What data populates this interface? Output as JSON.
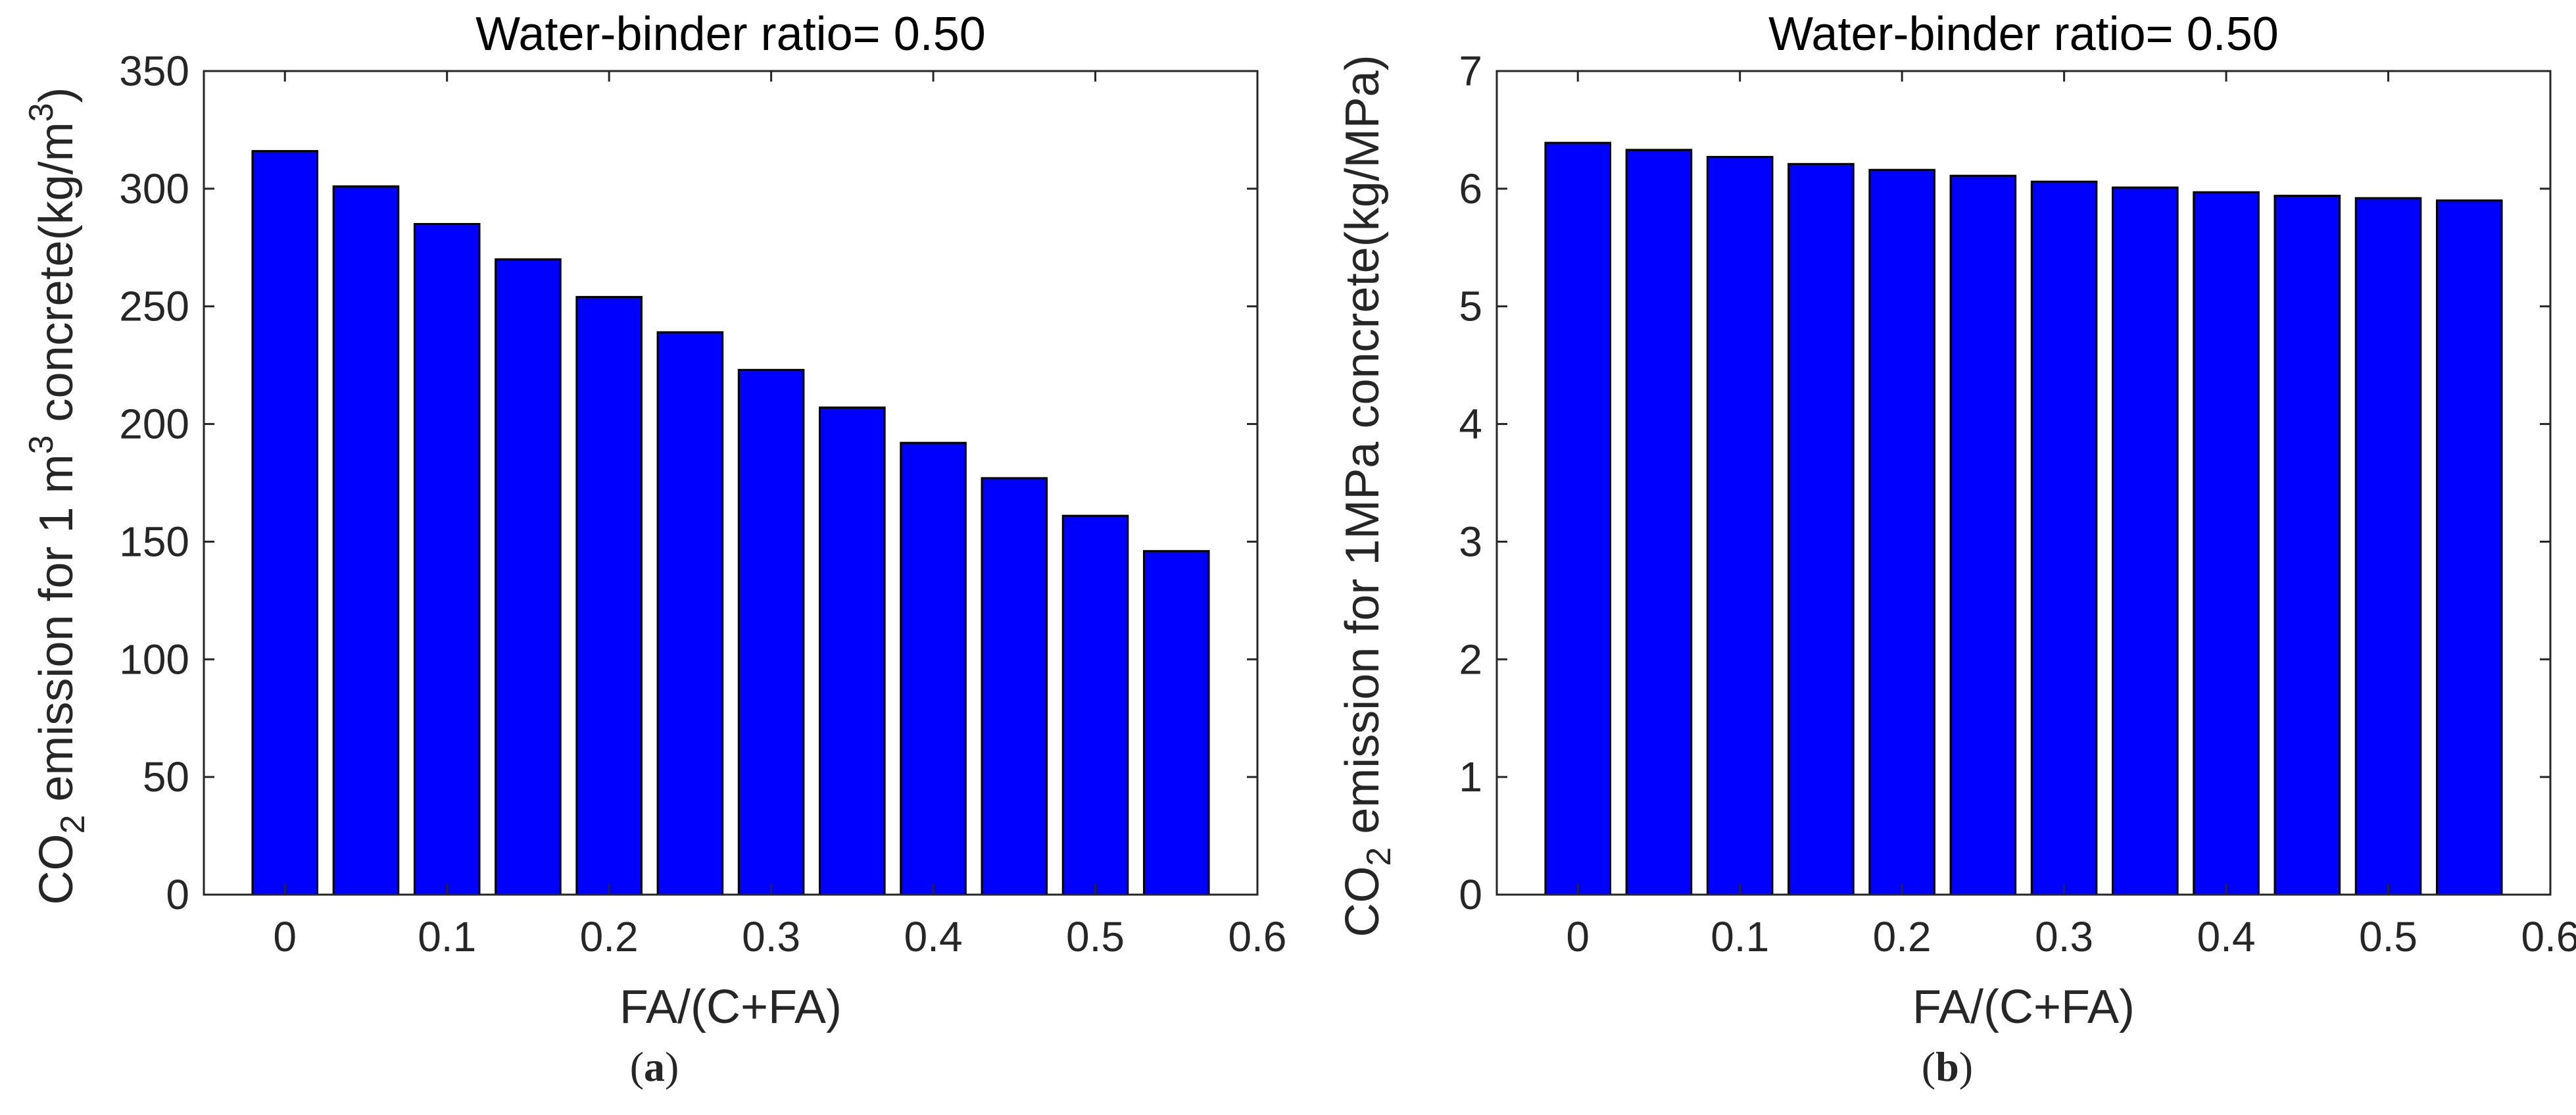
{
  "colors": {
    "bar": "#0000ff",
    "axis": "#262626",
    "text": "#262626"
  },
  "chart_data": [
    {
      "type": "bar",
      "title": "Water-binder ratio= 0.50",
      "xlabel": "FA/(C+FA)",
      "ylabel_parts": {
        "pre": "CO",
        "sub": "2",
        "mid": " emission for 1 m",
        "sup1": "3",
        "mid2": " concrete(kg/m",
        "sup2": "3",
        "post": ")"
      },
      "x": [
        0,
        0.05,
        0.1,
        0.15,
        0.2,
        0.25,
        0.3,
        0.35,
        0.4,
        0.45,
        0.5,
        0.55
      ],
      "values": [
        316,
        301,
        285,
        270,
        254,
        239,
        223,
        207,
        192,
        177,
        161,
        146
      ],
      "xlim": [
        -0.05,
        0.6
      ],
      "ylim": [
        0,
        350
      ],
      "xticks": [
        0,
        0.1,
        0.2,
        0.3,
        0.4,
        0.5,
        0.6
      ],
      "xtick_labels": [
        "0",
        "0.1",
        "0.2",
        "0.3",
        "0.4",
        "0.5",
        "0.6"
      ],
      "yticks": [
        0,
        50,
        100,
        150,
        200,
        250,
        300,
        350
      ],
      "ytick_labels": [
        "0",
        "50",
        "100",
        "150",
        "200",
        "250",
        "300",
        "350"
      ],
      "caption": {
        "open": "(",
        "letter": "a",
        "close": ")"
      }
    },
    {
      "type": "bar",
      "title": "Water-binder ratio= 0.50",
      "xlabel": "FA/(C+FA)",
      "ylabel_parts": {
        "pre": "CO",
        "sub": "2",
        "mid": " emission for 1MPa concrete(kg/MPa)"
      },
      "x": [
        0,
        0.05,
        0.1,
        0.15,
        0.2,
        0.25,
        0.3,
        0.35,
        0.4,
        0.45,
        0.5,
        0.55
      ],
      "values": [
        6.39,
        6.33,
        6.27,
        6.21,
        6.16,
        6.11,
        6.06,
        6.01,
        5.97,
        5.94,
        5.92,
        5.9
      ],
      "xlim": [
        -0.05,
        0.6
      ],
      "ylim": [
        0,
        7
      ],
      "xticks": [
        0,
        0.1,
        0.2,
        0.3,
        0.4,
        0.5,
        0.6
      ],
      "xtick_labels": [
        "0",
        "0.1",
        "0.2",
        "0.3",
        "0.4",
        "0.5",
        "0.6"
      ],
      "yticks": [
        0,
        1,
        2,
        3,
        4,
        5,
        6,
        7
      ],
      "ytick_labels": [
        "0",
        "1",
        "2",
        "3",
        "4",
        "5",
        "6",
        "7"
      ],
      "caption": {
        "open": "(",
        "letter": "b",
        "close": ")"
      }
    }
  ]
}
